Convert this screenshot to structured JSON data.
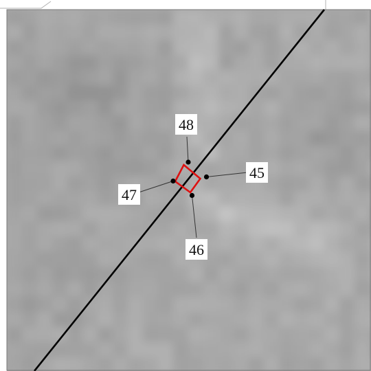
{
  "map": {
    "raster_colors": {
      "base": "#a8a8a8",
      "light": "#c4c4c4",
      "dark": "#959595"
    },
    "line_color": "#000000",
    "polygon_color": "#dd1111",
    "point_color": "#000000",
    "label_box_color": "#ffffff"
  },
  "vertices": [
    {
      "id": "45",
      "label": "45"
    },
    {
      "id": "46",
      "label": "46"
    },
    {
      "id": "47",
      "label": "47"
    },
    {
      "id": "48",
      "label": "48"
    }
  ]
}
